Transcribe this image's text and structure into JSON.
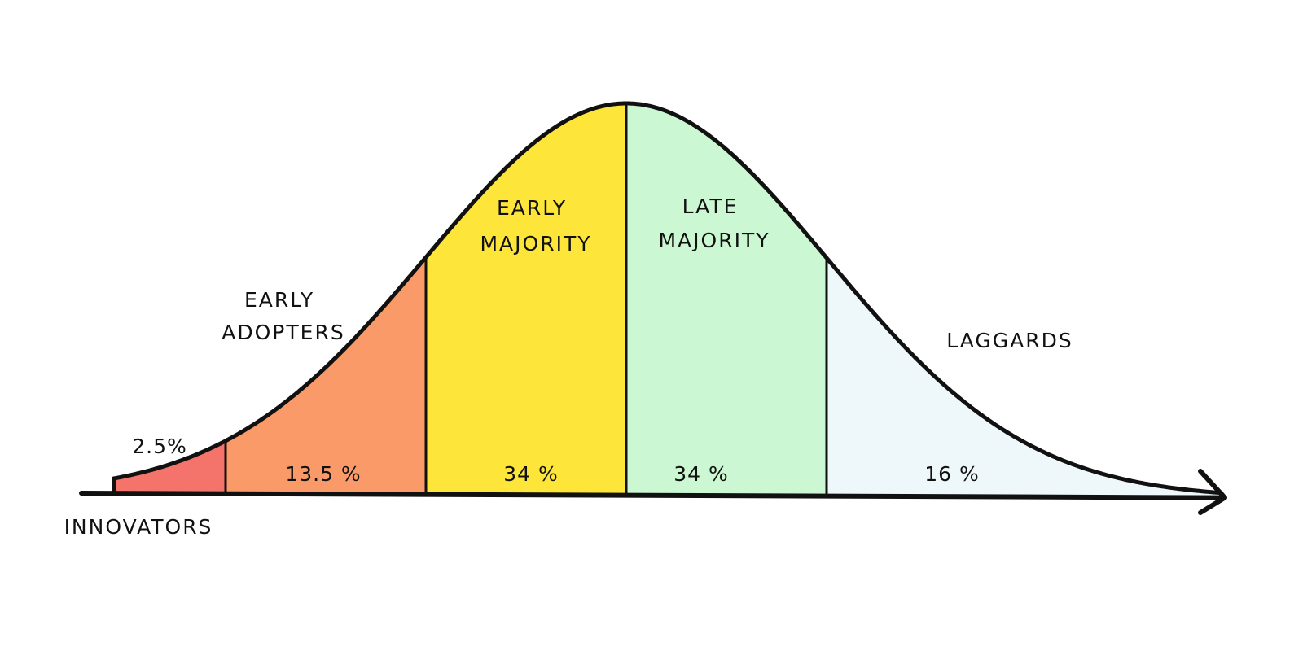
{
  "diagram": {
    "segments": [
      {
        "name": "innovators",
        "label_lines": [
          "INNOVATORS"
        ],
        "percent_label": "2.5%",
        "percent": 2.5,
        "color": "#f4736a"
      },
      {
        "name": "early-adopters",
        "label_lines": [
          "EARLY",
          "ADOPTERS"
        ],
        "percent_label": "13.5 %",
        "percent": 13.5,
        "color": "#fa9a68"
      },
      {
        "name": "early-majority",
        "label_lines": [
          "EARLY",
          "MAJORITY"
        ],
        "percent_label": "34 %",
        "percent": 34,
        "color": "#fde53a"
      },
      {
        "name": "late-majority",
        "label_lines": [
          "LATE",
          "MAJORITY"
        ],
        "percent_label": "34 %",
        "percent": 34,
        "color": "#cbf8d3"
      },
      {
        "name": "laggards",
        "label_lines": [
          "LAGGARDS"
        ],
        "percent_label": "16 %",
        "percent": 16,
        "color": "#eef8fb"
      }
    ]
  }
}
